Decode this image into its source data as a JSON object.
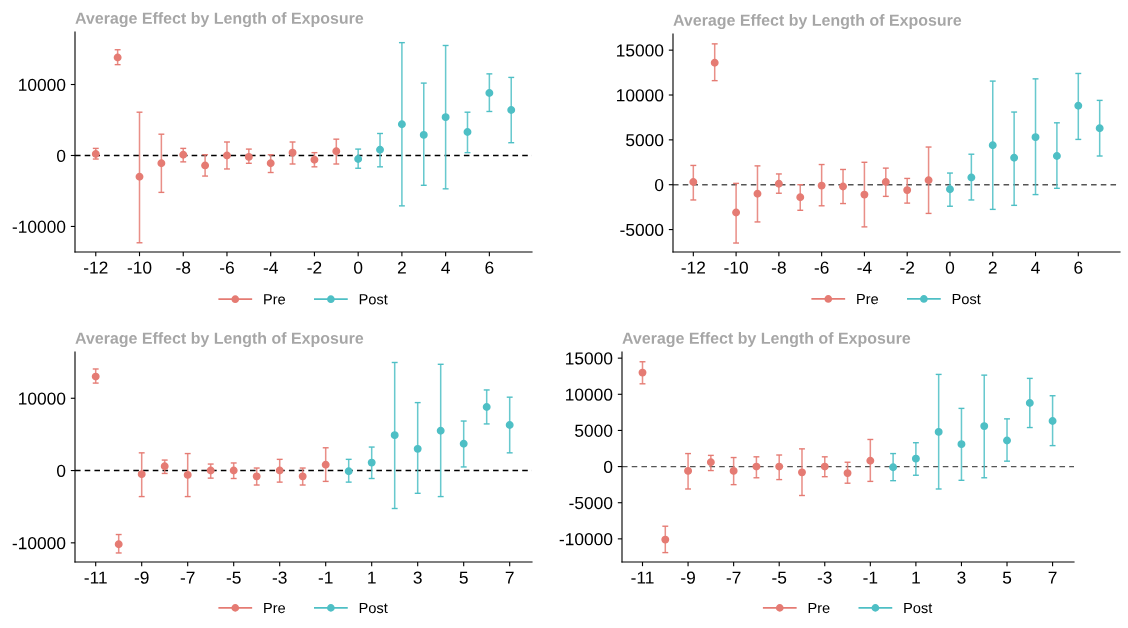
{
  "chart_data": [
    {
      "type": "scatter",
      "title": "Average Effect by Length of Exposure",
      "xlim": [
        -12.95,
        7.95
      ],
      "xticks": [
        -12,
        -10,
        -8,
        -6,
        -4,
        -2,
        0,
        2,
        4,
        6
      ],
      "ylim": [
        -13600,
        17400
      ],
      "yticks": [
        -10000,
        0,
        10000
      ],
      "marker": "circle",
      "legend": "bottom",
      "grid": false,
      "ref_lines": [
        {
          "axis": "y",
          "value": 0,
          "color": "#000000",
          "line_style": "dashed"
        }
      ],
      "series": [
        {
          "name": "Pre",
          "color": "#e57b73",
          "x": [
            -12,
            -11,
            -10,
            -9,
            -8,
            -7,
            -6,
            -5,
            -4,
            -3,
            -2,
            -1
          ],
          "values": [
            200,
            13800,
            -3000,
            -1100,
            100,
            -1400,
            0,
            -200,
            -1100,
            400,
            -600,
            600
          ],
          "errors": [
            [
              -500,
              1000
            ],
            [
              12800,
              14900
            ],
            [
              -12300,
              6100
            ],
            [
              -5200,
              3000
            ],
            [
              -900,
              1000
            ],
            [
              -2900,
              100
            ],
            [
              -1900,
              1900
            ],
            [
              -1100,
              900
            ],
            [
              -2400,
              100
            ],
            [
              -1200,
              1900
            ],
            [
              -1600,
              400
            ],
            [
              -1200,
              2300
            ]
          ]
        },
        {
          "name": "Post",
          "color": "#4ebfc5",
          "x": [
            0,
            1,
            2,
            3,
            4,
            5,
            6,
            7
          ],
          "values": [
            -500,
            800,
            4400,
            2900,
            5400,
            3300,
            8800,
            6400
          ],
          "errors": [
            [
              -1800,
              900
            ],
            [
              -1600,
              3100
            ],
            [
              -7100,
              15900
            ],
            [
              -4200,
              10200
            ],
            [
              -4700,
              15500
            ],
            [
              400,
              6100
            ],
            [
              6200,
              11500
            ],
            [
              1800,
              11000
            ]
          ]
        }
      ]
    },
    {
      "type": "scatter",
      "title": "Average Effect by Length of Exposure",
      "xlim": [
        -12.95,
        7.95
      ],
      "xticks": [
        -12,
        -10,
        -8,
        -6,
        -4,
        -2,
        0,
        2,
        4,
        6
      ],
      "ylim": [
        -7500,
        16800
      ],
      "yticks": [
        -5000,
        0,
        5000,
        10000,
        15000
      ],
      "marker": "circle",
      "legend": "bottom",
      "grid": false,
      "ref_lines": [
        {
          "axis": "y",
          "value": 0,
          "color": "#555555",
          "line_style": "dashed"
        }
      ],
      "series": [
        {
          "name": "Pre",
          "color": "#e57b73",
          "x": [
            -12,
            -11,
            -10,
            -9,
            -8,
            -7,
            -6,
            -5,
            -4,
            -3,
            -2,
            -1
          ],
          "values": [
            300,
            13600,
            -3100,
            -1000,
            100,
            -1400,
            -100,
            -200,
            -1100,
            300,
            -600,
            500
          ],
          "errors": [
            [
              -1700,
              2150
            ],
            [
              11600,
              15700
            ],
            [
              -6500,
              150
            ],
            [
              -4150,
              2100
            ],
            [
              -950,
              1200
            ],
            [
              -2850,
              0
            ],
            [
              -2350,
              2250
            ],
            [
              -2100,
              1700
            ],
            [
              -4700,
              2500
            ],
            [
              -1300,
              1850
            ],
            [
              -2050,
              700
            ],
            [
              -3200,
              4200
            ]
          ]
        },
        {
          "name": "Post",
          "color": "#4ebfc5",
          "x": [
            0,
            1,
            2,
            3,
            4,
            5,
            6,
            7
          ],
          "values": [
            -500,
            800,
            4400,
            3000,
            5300,
            3200,
            8800,
            6300
          ],
          "errors": [
            [
              -2400,
              1300
            ],
            [
              -1700,
              3400
            ],
            [
              -2750,
              11550
            ],
            [
              -2300,
              8100
            ],
            [
              -1100,
              11800
            ],
            [
              -400,
              6900
            ],
            [
              5050,
              12400
            ],
            [
              3200,
              9400
            ]
          ]
        }
      ]
    },
    {
      "type": "scatter",
      "title": "Average Effect by Length of Exposure",
      "xlim": [
        -11.9,
        7.97
      ],
      "xticks": [
        -11,
        -9,
        -7,
        -5,
        -3,
        -1,
        1,
        3,
        5,
        7
      ],
      "ylim": [
        -12650,
        16400
      ],
      "yticks": [
        -10000,
        0,
        10000
      ],
      "marker": "circle",
      "legend": "bottom",
      "grid": false,
      "ref_lines": [
        {
          "axis": "y",
          "value": 0,
          "color": "#000000",
          "line_style": "dashed"
        }
      ],
      "series": [
        {
          "name": "Pre",
          "color": "#e57b73",
          "x": [
            -11,
            -10,
            -9,
            -8,
            -7,
            -6,
            -5,
            -4,
            -3,
            -2,
            -1
          ],
          "values": [
            13000,
            -10200,
            -500,
            600,
            -600,
            0,
            0,
            -800,
            0,
            -800,
            800
          ],
          "errors": [
            [
              12100,
              14050
            ],
            [
              -11400,
              -8850
            ],
            [
              -3600,
              2450
            ],
            [
              -400,
              1450
            ],
            [
              -3600,
              2350
            ],
            [
              -1050,
              900
            ],
            [
              -1100,
              1050
            ],
            [
              -2000,
              350
            ],
            [
              -1600,
              1550
            ],
            [
              -2000,
              350
            ],
            [
              -1500,
              3150
            ]
          ]
        },
        {
          "name": "Post",
          "color": "#4ebfc5",
          "x": [
            0,
            1,
            2,
            3,
            4,
            5,
            6,
            7
          ],
          "values": [
            -100,
            1100,
            4900,
            3000,
            5500,
            3700,
            8800,
            6300
          ],
          "errors": [
            [
              -1600,
              1550
            ],
            [
              -1100,
              3250
            ],
            [
              -5250,
              14950
            ],
            [
              -3150,
              9400
            ],
            [
              -3600,
              14700
            ],
            [
              500,
              6850
            ],
            [
              6450,
              11150
            ],
            [
              2450,
              10150
            ]
          ]
        }
      ]
    },
    {
      "type": "scatter",
      "title": "Average Effect by Length of Exposure",
      "xlim": [
        -11.9,
        7.94
      ],
      "xticks": [
        -11,
        -9,
        -7,
        -5,
        -3,
        -1,
        1,
        3,
        5,
        7
      ],
      "ylim": [
        -13200,
        15850
      ],
      "yticks": [
        -10000,
        -5000,
        0,
        5000,
        10000,
        15000
      ],
      "marker": "circle",
      "legend": "bottom",
      "grid": false,
      "ref_lines": [
        {
          "axis": "y",
          "value": 0,
          "color": "#555555",
          "line_style": "dashed"
        }
      ],
      "series": [
        {
          "name": "Pre",
          "color": "#e57b73",
          "x": [
            -11,
            -10,
            -9,
            -8,
            -7,
            -6,
            -5,
            -4,
            -3,
            -2,
            -1
          ],
          "values": [
            13000,
            -10100,
            -600,
            600,
            -600,
            0,
            0,
            -800,
            0,
            -900,
            800
          ],
          "errors": [
            [
              11450,
              14500
            ],
            [
              -11900,
              -8250
            ],
            [
              -3100,
              1800
            ],
            [
              -550,
              1550
            ],
            [
              -2500,
              1250
            ],
            [
              -1550,
              1350
            ],
            [
              -1800,
              1600
            ],
            [
              -4000,
              2450
            ],
            [
              -1400,
              1350
            ],
            [
              -2300,
              600
            ],
            [
              -2050,
              3750
            ]
          ]
        },
        {
          "name": "Post",
          "color": "#4ebfc5",
          "x": [
            0,
            1,
            2,
            3,
            4,
            5,
            6,
            7
          ],
          "values": [
            -100,
            1100,
            4800,
            3100,
            5600,
            3600,
            8800,
            6300
          ],
          "errors": [
            [
              -1950,
              1800
            ],
            [
              -1200,
              3300
            ],
            [
              -3100,
              12750
            ],
            [
              -1900,
              8050
            ],
            [
              -1550,
              12650
            ],
            [
              750,
              6600
            ],
            [
              5400,
              12200
            ],
            [
              2900,
              9800
            ]
          ]
        }
      ]
    }
  ]
}
